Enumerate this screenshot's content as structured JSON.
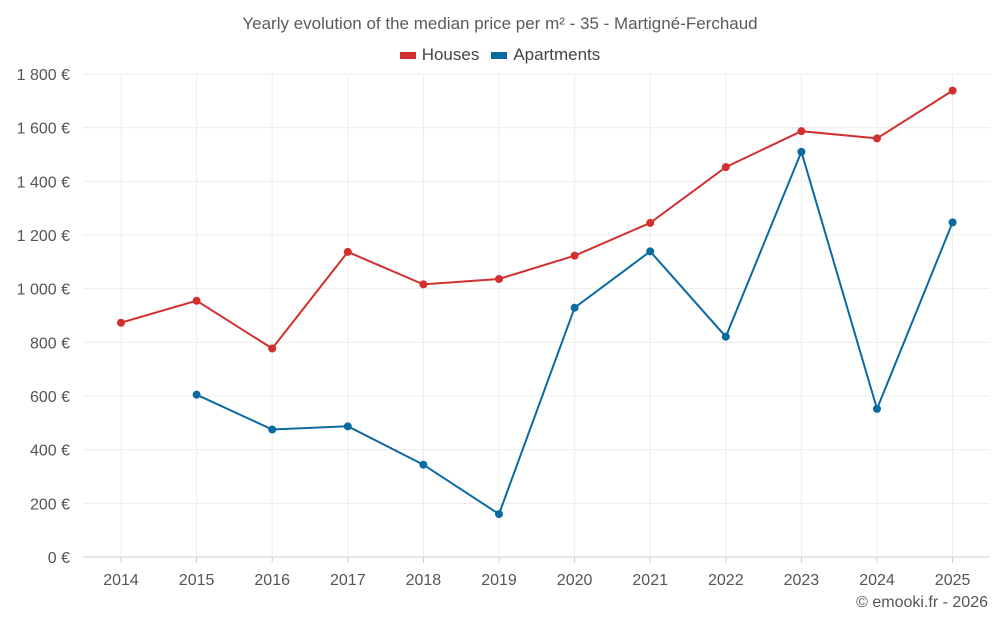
{
  "chart_data": {
    "type": "line",
    "title": "Yearly evolution of the median price per m² - 35 - Martigné-Ferchaud",
    "categories": [
      "2014",
      "2015",
      "2016",
      "2017",
      "2018",
      "2019",
      "2020",
      "2021",
      "2022",
      "2023",
      "2024",
      "2025"
    ],
    "y_ticks": [
      0,
      200,
      400,
      600,
      800,
      1000,
      1200,
      1400,
      1600,
      1800
    ],
    "y_tick_labels": [
      "0 €",
      "200 €",
      "400 €",
      "600 €",
      "800 €",
      "1 000 €",
      "1 200 €",
      "1 400 €",
      "1 600 €",
      "1 800 €"
    ],
    "ylim": [
      0,
      1800
    ],
    "grid": true,
    "legend_position": "top-center",
    "series": [
      {
        "name": "Houses",
        "color": "#d32f2f",
        "values": [
          873,
          955,
          777,
          1137,
          1016,
          1036,
          1123,
          1245,
          1453,
          1587,
          1560,
          1738
        ]
      },
      {
        "name": "Apartments",
        "color": "#0a6aa1",
        "values": [
          null,
          605,
          475,
          487,
          344,
          160,
          929,
          1139,
          821,
          1510,
          552,
          1247
        ]
      }
    ]
  },
  "credit": "© emooki.fr - 2026"
}
